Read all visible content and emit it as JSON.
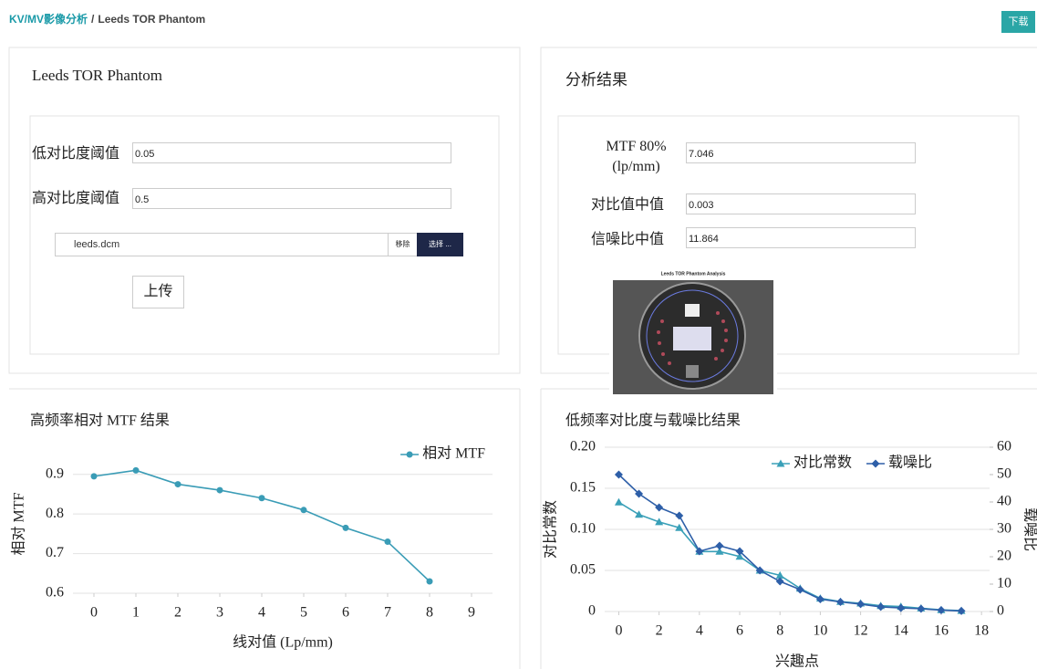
{
  "breadcrumb": {
    "section": "KV/MV影像分析",
    "separator": "/",
    "page": "Leeds TOR Phantom"
  },
  "download_button": "下载",
  "input_panel": {
    "title": "Leeds TOR Phantom",
    "fields": [
      {
        "label": "低对比度阈值",
        "value": "0.05"
      },
      {
        "label": "高对比度阈值",
        "value": "0.5"
      }
    ],
    "file": {
      "name": "leeds.dcm",
      "remove": "移除",
      "choose": "选择 ..."
    },
    "upload": "上传"
  },
  "result_panel": {
    "title": "分析结果",
    "fields": [
      {
        "label": "MTF 80% (lp/mm)",
        "value": "7.046"
      },
      {
        "label": "对比值中值",
        "value": "0.003"
      },
      {
        "label": "信噪比中值",
        "value": "11.864"
      }
    ],
    "image_title": "Leeds TOR Phantom Analysis"
  },
  "chart_data": [
    {
      "type": "line",
      "title": "高频率相对 MTF 结果",
      "xlabel": "线对值 (Lp/mm)",
      "ylabel": "相对 MTF",
      "x": [
        0,
        1,
        2,
        3,
        4,
        5,
        6,
        7,
        8
      ],
      "series": [
        {
          "name": "相对 MTF",
          "color": "#3a9cb6",
          "marker": "circle",
          "values": [
            0.895,
            0.91,
            0.875,
            0.86,
            0.84,
            0.81,
            0.765,
            0.73,
            0.63
          ]
        }
      ],
      "xlim": [
        -0.5,
        9.5
      ],
      "xticks": [
        0,
        1,
        2,
        3,
        4,
        5,
        6,
        7,
        8,
        9
      ],
      "ylim": [
        0.6,
        0.95
      ],
      "yticks": [
        0.6,
        0.7,
        0.8,
        0.9
      ],
      "grid": true,
      "legend": "upper right"
    },
    {
      "type": "line",
      "title": "低频率对比度与载噪比结果",
      "xlabel": "兴趣点",
      "ylabel": "对比常数",
      "y2label": "载噪比",
      "x": [
        0,
        1,
        2,
        3,
        4,
        5,
        6,
        7,
        8,
        9,
        10,
        11,
        12,
        13,
        14,
        15,
        16,
        17
      ],
      "series": [
        {
          "name": "对比常数",
          "color": "#3aa0b8",
          "marker": "triangle",
          "values": [
            0.133,
            0.118,
            0.109,
            0.102,
            0.073,
            0.073,
            0.067,
            0.05,
            0.044,
            0.028,
            0.016,
            0.012,
            0.01,
            0.007,
            0.006,
            0.004,
            0.002,
            0.001
          ]
        },
        {
          "name": "载噪比",
          "color": "#2e5fa8",
          "marker": "diamond",
          "axis": "y2",
          "values": [
            50,
            43,
            38,
            35,
            22,
            24,
            22,
            15,
            11,
            8,
            4.5,
            3.5,
            2.7,
            1.7,
            1.3,
            1,
            0.5,
            0.2
          ]
        }
      ],
      "xlim": [
        -0.7,
        18.4
      ],
      "xticks": [
        0,
        2,
        4,
        6,
        8,
        10,
        12,
        14,
        16,
        18
      ],
      "ylim": [
        0,
        0.2
      ],
      "yticks": [
        0,
        0.05,
        {
          "value": 0.1,
          "label": "0.10"
        },
        0.15,
        {
          "value": 0.2,
          "label": "0.20"
        }
      ],
      "y2lim": [
        0,
        60
      ],
      "y2ticks": [
        0,
        10,
        20,
        30,
        40,
        50,
        60
      ],
      "grid": true,
      "legend": "upper right"
    }
  ]
}
